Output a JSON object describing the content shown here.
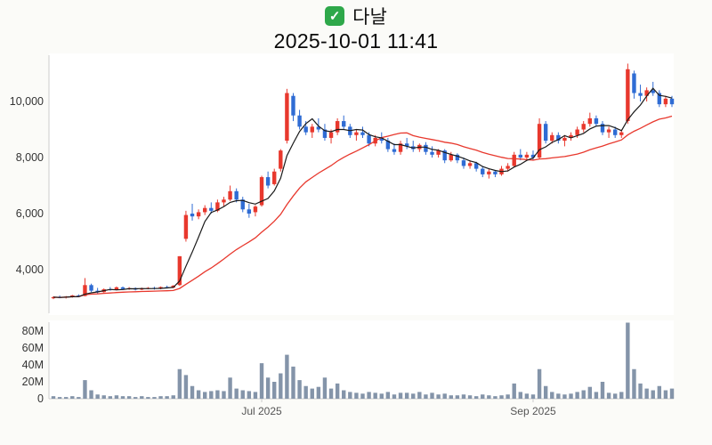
{
  "header": {
    "check_icon": "✓",
    "stock_name": "다날",
    "datetime": "2025-10-01 11:41"
  },
  "colors": {
    "up": "#e8382d",
    "down": "#2f6cd4",
    "ma_short": "#1a1a1a",
    "ma_long": "#e8382d",
    "volume": "#8494a9",
    "spine": "#cccccc",
    "plot_bg": "#ffffff",
    "check_bg": "#2ea84a"
  },
  "price_axis": {
    "ticks": [
      {
        "value": 4000,
        "label": "4,000"
      },
      {
        "value": 6000,
        "label": "6,000"
      },
      {
        "value": 8000,
        "label": "8,000"
      },
      {
        "value": 10000,
        "label": "10,000"
      }
    ]
  },
  "volume_axis": {
    "unit": "M",
    "ticks": [
      {
        "value": 0,
        "label": "0"
      },
      {
        "value": 20,
        "label": "20M"
      },
      {
        "value": 40,
        "label": "40M"
      },
      {
        "value": 60,
        "label": "60M"
      },
      {
        "value": 80,
        "label": "80M"
      }
    ]
  },
  "x_axis": {
    "labels": [
      {
        "date": "2025-07-01",
        "label": "Jul 2025"
      },
      {
        "date": "2025-09-01",
        "label": "Sep 2025"
      }
    ]
  },
  "chart_data": {
    "type": "candlestick+volume",
    "title": "다날",
    "subtitle": "2025-10-01 11:41",
    "ylim": [
      2500,
      11600
    ],
    "volume_ylim_millions": [
      0,
      95
    ],
    "legend_position": "none",
    "grid": false,
    "overlays": [
      {
        "name": "MA5",
        "type": "sma",
        "window": 5,
        "color_key": "ma_short"
      },
      {
        "name": "MA20",
        "type": "sma",
        "window": 20,
        "color_key": "ma_long"
      }
    ],
    "columns": [
      "date",
      "open",
      "high",
      "low",
      "close",
      "volume_millions"
    ],
    "rows": [
      [
        "2025-05-15",
        2980,
        3050,
        2950,
        3020,
        3
      ],
      [
        "2025-05-16",
        3020,
        3080,
        2980,
        3000,
        2
      ],
      [
        "2025-05-19",
        3000,
        3060,
        2970,
        3040,
        2
      ],
      [
        "2025-05-20",
        3040,
        3100,
        3000,
        3080,
        3
      ],
      [
        "2025-05-21",
        3080,
        3120,
        3020,
        3050,
        2
      ],
      [
        "2025-05-22",
        3060,
        3700,
        3050,
        3450,
        22
      ],
      [
        "2025-05-23",
        3450,
        3500,
        3200,
        3250,
        10
      ],
      [
        "2025-05-26",
        3250,
        3350,
        3150,
        3200,
        5
      ],
      [
        "2025-05-27",
        3200,
        3330,
        3180,
        3300,
        4
      ],
      [
        "2025-05-28",
        3300,
        3380,
        3250,
        3280,
        3
      ],
      [
        "2025-05-29",
        3280,
        3400,
        3260,
        3370,
        4
      ],
      [
        "2025-05-30",
        3370,
        3400,
        3280,
        3310,
        3
      ],
      [
        "2025-06-02",
        3310,
        3380,
        3280,
        3340,
        3
      ],
      [
        "2025-06-03",
        3340,
        3370,
        3260,
        3290,
        2
      ],
      [
        "2025-06-04",
        3290,
        3360,
        3270,
        3330,
        3
      ],
      [
        "2025-06-05",
        3330,
        3380,
        3300,
        3350,
        2
      ],
      [
        "2025-06-06",
        3350,
        3390,
        3290,
        3320,
        2
      ],
      [
        "2025-06-09",
        3320,
        3400,
        3300,
        3380,
        3
      ],
      [
        "2025-06-10",
        3380,
        3430,
        3330,
        3360,
        3
      ],
      [
        "2025-06-11",
        3360,
        3450,
        3340,
        3430,
        4
      ],
      [
        "2025-06-12",
        3450,
        4480,
        3420,
        4480,
        35
      ],
      [
        "2025-06-13",
        5100,
        6100,
        5000,
        5950,
        28
      ],
      [
        "2025-06-16",
        6000,
        6350,
        5750,
        5900,
        15
      ],
      [
        "2025-06-17",
        5900,
        6150,
        5800,
        6050,
        10
      ],
      [
        "2025-06-18",
        6050,
        6300,
        5950,
        6200,
        8
      ],
      [
        "2025-06-19",
        6200,
        6400,
        6000,
        6100,
        9
      ],
      [
        "2025-06-20",
        6100,
        6500,
        6050,
        6400,
        10
      ],
      [
        "2025-06-23",
        6400,
        6600,
        6250,
        6500,
        9
      ],
      [
        "2025-06-24",
        6500,
        7000,
        6450,
        6800,
        25
      ],
      [
        "2025-06-25",
        6800,
        6900,
        6400,
        6500,
        12
      ],
      [
        "2025-06-26",
        6500,
        6600,
        6050,
        6150,
        10
      ],
      [
        "2025-06-27",
        6150,
        6350,
        5850,
        6000,
        9
      ],
      [
        "2025-06-30",
        6050,
        6300,
        5900,
        6250,
        8
      ],
      [
        "2025-07-01",
        6300,
        7350,
        6250,
        7300,
        42
      ],
      [
        "2025-07-02",
        7300,
        7500,
        6900,
        7000,
        25
      ],
      [
        "2025-07-03",
        7050,
        7600,
        7000,
        7500,
        20
      ],
      [
        "2025-07-04",
        7600,
        8300,
        7500,
        8250,
        30
      ],
      [
        "2025-07-07",
        8600,
        10450,
        8500,
        10300,
        52
      ],
      [
        "2025-07-08",
        10200,
        10300,
        9300,
        9500,
        38
      ],
      [
        "2025-07-09",
        9500,
        9700,
        9000,
        9100,
        22
      ],
      [
        "2025-07-10",
        9100,
        9300,
        8800,
        8900,
        15
      ],
      [
        "2025-07-11",
        8900,
        9200,
        8700,
        9100,
        12
      ],
      [
        "2025-07-14",
        9100,
        9400,
        8900,
        9000,
        14
      ],
      [
        "2025-07-15",
        9000,
        9200,
        8600,
        8700,
        25
      ],
      [
        "2025-07-16",
        8700,
        9000,
        8500,
        8900,
        12
      ],
      [
        "2025-07-17",
        8900,
        9400,
        8800,
        9300,
        18
      ],
      [
        "2025-07-18",
        9300,
        9500,
        9000,
        9100,
        10
      ],
      [
        "2025-07-21",
        9100,
        9200,
        8700,
        8800,
        8
      ],
      [
        "2025-07-22",
        8800,
        9000,
        8600,
        8900,
        7
      ],
      [
        "2025-07-23",
        8900,
        9100,
        8700,
        8800,
        6
      ],
      [
        "2025-07-24",
        8800,
        8900,
        8400,
        8500,
        8
      ],
      [
        "2025-07-25",
        8500,
        8800,
        8400,
        8700,
        7
      ],
      [
        "2025-07-28",
        8700,
        8900,
        8500,
        8600,
        6
      ],
      [
        "2025-07-29",
        8600,
        8700,
        8200,
        8300,
        8
      ],
      [
        "2025-07-30",
        8300,
        8500,
        8100,
        8200,
        5
      ],
      [
        "2025-07-31",
        8200,
        8600,
        8100,
        8500,
        7
      ],
      [
        "2025-08-01",
        8500,
        8700,
        8300,
        8400,
        7
      ],
      [
        "2025-08-04",
        8400,
        8600,
        8200,
        8300,
        6
      ],
      [
        "2025-08-05",
        8300,
        8500,
        8200,
        8450,
        8
      ],
      [
        "2025-08-06",
        8450,
        8550,
        8100,
        8200,
        5
      ],
      [
        "2025-08-07",
        8200,
        8400,
        8000,
        8100,
        7
      ],
      [
        "2025-08-08",
        8100,
        8300,
        8000,
        8250,
        5
      ],
      [
        "2025-08-11",
        8250,
        8300,
        7800,
        7900,
        6
      ],
      [
        "2025-08-12",
        7900,
        8200,
        7850,
        8100,
        4
      ],
      [
        "2025-08-13",
        8100,
        8150,
        7800,
        7900,
        4
      ],
      [
        "2025-08-14",
        7900,
        8000,
        7600,
        7700,
        5
      ],
      [
        "2025-08-18",
        7700,
        7900,
        7600,
        7800,
        4
      ],
      [
        "2025-08-19",
        7800,
        7850,
        7500,
        7600,
        3
      ],
      [
        "2025-08-20",
        7600,
        7700,
        7300,
        7400,
        5
      ],
      [
        "2025-08-21",
        7400,
        7600,
        7250,
        7500,
        4
      ],
      [
        "2025-08-22",
        7500,
        7550,
        7300,
        7400,
        3
      ],
      [
        "2025-08-25",
        7400,
        7700,
        7350,
        7600,
        4
      ],
      [
        "2025-08-26",
        7600,
        7800,
        7500,
        7700,
        5
      ],
      [
        "2025-08-27",
        7700,
        8200,
        7650,
        8100,
        18
      ],
      [
        "2025-08-28",
        8100,
        8300,
        7900,
        8000,
        8
      ],
      [
        "2025-08-29",
        8000,
        8200,
        7900,
        8100,
        6
      ],
      [
        "2025-09-01",
        8100,
        8250,
        7900,
        8000,
        5
      ],
      [
        "2025-09-02",
        8000,
        9400,
        7950,
        9200,
        35
      ],
      [
        "2025-09-03",
        9200,
        9300,
        8500,
        8600,
        15
      ],
      [
        "2025-09-04",
        8600,
        8900,
        8500,
        8800,
        8
      ],
      [
        "2025-09-05",
        8800,
        8900,
        8500,
        8600,
        6
      ],
      [
        "2025-09-08",
        8600,
        8800,
        8400,
        8700,
        5
      ],
      [
        "2025-09-09",
        8700,
        8900,
        8600,
        8800,
        6
      ],
      [
        "2025-09-10",
        8800,
        9100,
        8700,
        9000,
        8
      ],
      [
        "2025-09-11",
        9000,
        9300,
        8900,
        9200,
        10
      ],
      [
        "2025-09-12",
        9200,
        9600,
        9100,
        9400,
        14
      ],
      [
        "2025-09-15",
        9400,
        9500,
        9100,
        9200,
        8
      ],
      [
        "2025-09-16",
        9200,
        9300,
        8800,
        8900,
        20
      ],
      [
        "2025-09-17",
        8900,
        9100,
        8700,
        9000,
        7
      ],
      [
        "2025-09-18",
        9000,
        9100,
        8700,
        8800,
        6
      ],
      [
        "2025-09-19",
        8800,
        9000,
        8700,
        8900,
        8
      ],
      [
        "2025-09-22",
        9300,
        11350,
        9200,
        11150,
        90
      ],
      [
        "2025-09-23",
        11000,
        11100,
        10100,
        10300,
        35
      ],
      [
        "2025-09-24",
        10300,
        10600,
        10000,
        10200,
        18
      ],
      [
        "2025-09-25",
        10200,
        10500,
        10000,
        10400,
        12
      ],
      [
        "2025-09-26",
        10400,
        10700,
        10200,
        10300,
        10
      ],
      [
        "2025-09-29",
        10300,
        10400,
        9800,
        9900,
        15
      ],
      [
        "2025-09-30",
        9900,
        10200,
        9800,
        10100,
        10
      ],
      [
        "2025-10-01",
        10100,
        10200,
        9800,
        9900,
        12
      ]
    ]
  }
}
